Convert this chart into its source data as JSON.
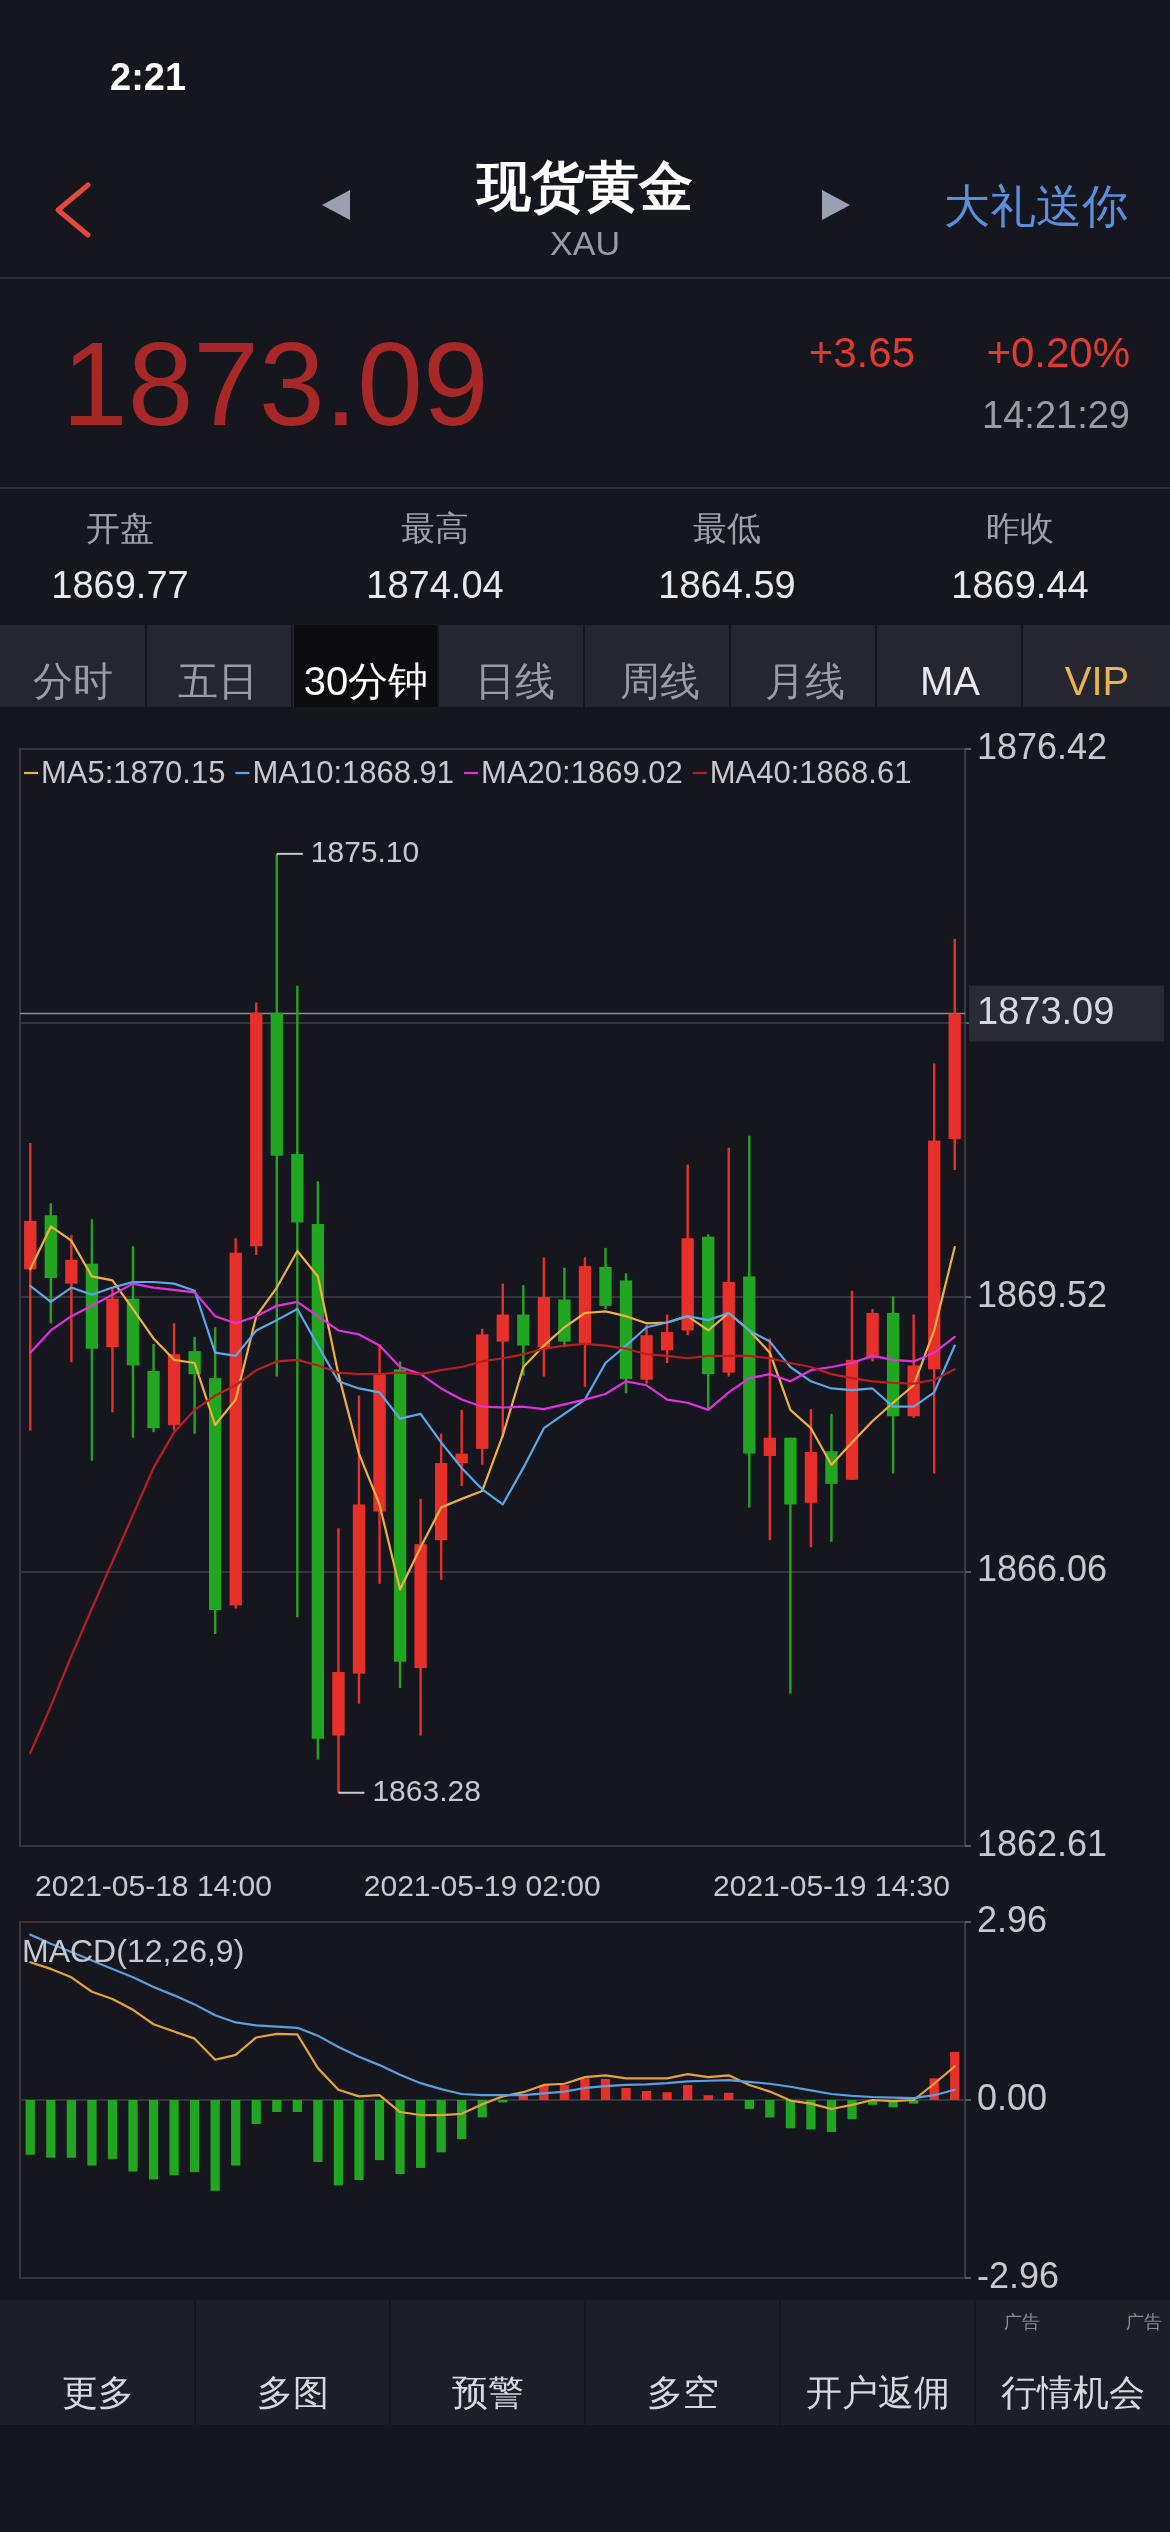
{
  "chart_data": [
    {
      "type": "other",
      "title": "现货黄金",
      "subtitle": "XAU",
      "annotations": [
        "2:21",
        "大礼送你",
        "1873.09",
        "+3.65",
        "+0.20%",
        "14:21:29",
        "开盘",
        "1869.77",
        "最高",
        "1874.04",
        "最低",
        "1864.59",
        "昨收",
        "1869.44",
        "分时",
        "五日",
        "30分钟",
        "日线",
        "周线",
        "月线",
        "MA",
        "VIP",
        "更多",
        "多图",
        "预警",
        "多空",
        "开户返佣",
        "行情机会",
        "广告",
        "广告"
      ]
    },
    {
      "type": "candlestick",
      "categories": [
        null,
        null,
        null,
        null,
        null,
        null,
        "2021-05-18 14:00",
        null,
        null,
        null,
        null,
        null,
        null,
        null,
        null,
        null,
        null,
        null,
        null,
        null,
        null,
        null,
        "2021-05-19 02:00",
        null,
        null,
        null,
        null,
        null,
        null,
        null,
        null,
        null,
        null,
        null,
        null,
        null,
        null,
        null,
        null,
        "2021-05-19 14:30",
        null,
        null,
        null,
        null,
        null,
        null
      ],
      "ohlc": [
        [
          1869.87,
          1871.46,
          1867.84,
          1870.48
        ],
        [
          1870.55,
          1870.7,
          1869.19,
          1869.76
        ],
        [
          1869.69,
          1870.3,
          1868.7,
          1869.99
        ],
        [
          1869.94,
          1870.5,
          1867.46,
          1868.87
        ],
        [
          1868.89,
          1869.64,
          1868.07,
          1869.5
        ],
        [
          1869.5,
          1870.16,
          1867.75,
          1868.66
        ],
        [
          1868.59,
          1868.93,
          1867.82,
          1867.87
        ],
        [
          1867.91,
          1869.19,
          1867.84,
          1868.8
        ],
        [
          1868.84,
          1869.02,
          1867.8,
          1868.55
        ],
        [
          1868.5,
          1869.14,
          1865.28,
          1865.58
        ],
        [
          1865.64,
          1870.26,
          1865.6,
          1870.08
        ],
        [
          1870.16,
          1873.23,
          1870.05,
          1873.1
        ],
        [
          1873.1,
          1875.1,
          1868.52,
          1871.3
        ],
        [
          1871.32,
          1873.44,
          1865.49,
          1870.46
        ],
        [
          1870.44,
          1870.98,
          1863.7,
          1863.96
        ],
        [
          1864.0,
          1866.61,
          1863.28,
          1864.8
        ],
        [
          1864.78,
          1868.28,
          1864.4,
          1866.91
        ],
        [
          1866.82,
          1868.93,
          1865.91,
          1868.55
        ],
        [
          1868.61,
          1868.71,
          1864.6,
          1864.93
        ],
        [
          1864.85,
          1866.98,
          1864.0,
          1866.41
        ],
        [
          1866.46,
          1867.8,
          1865.96,
          1867.43
        ],
        [
          1867.43,
          1868.1,
          1867.14,
          1867.55
        ],
        [
          1867.61,
          1869.12,
          1867.41,
          1869.05
        ],
        [
          1868.96,
          1869.69,
          1867.75,
          1869.3
        ],
        [
          1869.3,
          1869.67,
          1868.53,
          1868.91
        ],
        [
          1868.89,
          1870.02,
          1868.52,
          1869.52
        ],
        [
          1869.49,
          1869.89,
          1868.89,
          1868.96
        ],
        [
          1868.93,
          1870.02,
          1868.39,
          1869.91
        ],
        [
          1869.9,
          1870.14,
          1869.37,
          1869.41
        ],
        [
          1869.73,
          1869.82,
          1868.31,
          1868.49
        ],
        [
          1868.48,
          1869.17,
          1868.43,
          1869.04
        ],
        [
          1868.85,
          1869.3,
          1868.69,
          1869.08
        ],
        [
          1869.1,
          1871.19,
          1869.04,
          1870.26
        ],
        [
          1870.28,
          1870.31,
          1868.1,
          1868.55
        ],
        [
          1868.57,
          1871.4,
          1868.52,
          1869.71
        ],
        [
          1869.78,
          1871.55,
          1866.87,
          1867.55
        ],
        [
          1867.52,
          1869.0,
          1866.46,
          1867.75
        ],
        [
          1867.75,
          1867.75,
          1864.53,
          1866.91
        ],
        [
          1866.93,
          1868.11,
          1866.37,
          1867.57
        ],
        [
          1867.58,
          1868.05,
          1866.44,
          1867.17
        ],
        [
          1867.22,
          1869.6,
          1867.22,
          1868.73
        ],
        [
          1868.75,
          1869.37,
          1868.71,
          1869.32
        ],
        [
          1869.32,
          1869.53,
          1867.3,
          1868.02
        ],
        [
          1868.02,
          1869.3,
          1868.0,
          1868.66
        ],
        [
          1868.61,
          1872.46,
          1867.3,
          1871.49
        ],
        [
          1871.51,
          1874.03,
          1871.12,
          1873.09
        ]
      ],
      "series": [
        {
          "name": "MA5:1870.15",
          "type": "line",
          "color": "#f0b040",
          "values": [
            1869.87,
            1870.41,
            1870.23,
            1869.78,
            1869.73,
            1869.37,
            1869.0,
            1868.73,
            1868.69,
            1867.91,
            1868.23,
            1869.28,
            1869.64,
            1870.1,
            1869.78,
            1868.55,
            1867.55,
            1866.91,
            1865.84,
            1866.37,
            1866.87,
            1866.98,
            1867.08,
            1867.78,
            1868.64,
            1868.91,
            1869.14,
            1869.32,
            1869.34,
            1869.28,
            1869.19,
            1869.2,
            1869.28,
            1869.1,
            1869.32,
            1869.1,
            1868.82,
            1868.1,
            1867.87,
            1867.41,
            1867.69,
            1867.96,
            1868.19,
            1868.41,
            1869.1,
            1870.15
          ]
        },
        {
          "name": "MA10:1868.91",
          "type": "line",
          "color": "#5aa8e8",
          "values": [
            1869.66,
            1869.46,
            1869.64,
            1869.55,
            1869.64,
            1869.71,
            1869.71,
            1869.69,
            1869.6,
            1868.82,
            1868.78,
            1869.1,
            1869.23,
            1869.37,
            1868.91,
            1868.46,
            1868.37,
            1868.32,
            1867.99,
            1868.05,
            1867.69,
            1867.37,
            1867.1,
            1866.91,
            1867.37,
            1867.87,
            1868.05,
            1868.23,
            1868.69,
            1868.91,
            1869.14,
            1869.2,
            1869.28,
            1869.23,
            1869.32,
            1869.1,
            1868.96,
            1868.64,
            1868.46,
            1868.37,
            1868.35,
            1868.37,
            1868.14,
            1868.14,
            1868.32,
            1868.91
          ]
        },
        {
          "name": "MA20:1869.02",
          "type": "line",
          "color": "#e030e0",
          "values": [
            1868.82,
            1869.1,
            1869.28,
            1869.41,
            1869.55,
            1869.69,
            1869.64,
            1869.61,
            1869.58,
            1869.28,
            1869.19,
            1869.28,
            1869.41,
            1869.46,
            1869.28,
            1869.1,
            1869.05,
            1868.91,
            1868.64,
            1868.55,
            1868.37,
            1868.23,
            1868.14,
            1868.13,
            1868.14,
            1868.11,
            1868.17,
            1868.23,
            1868.3,
            1868.46,
            1868.41,
            1868.23,
            1868.19,
            1868.1,
            1868.32,
            1868.5,
            1868.55,
            1868.46,
            1868.6,
            1868.64,
            1868.69,
            1868.78,
            1868.73,
            1868.71,
            1868.82,
            1869.02
          ]
        },
        {
          "name": "MA40:1868.61",
          "type": "line",
          "color": "#b82020",
          "values": [
            1863.78,
            1864.37,
            1865.0,
            1865.6,
            1866.19,
            1866.78,
            1867.37,
            1867.82,
            1868.1,
            1868.28,
            1868.41,
            1868.6,
            1868.71,
            1868.73,
            1868.66,
            1868.57,
            1868.55,
            1868.55,
            1868.57,
            1868.55,
            1868.6,
            1868.64,
            1868.71,
            1868.75,
            1868.8,
            1868.87,
            1868.91,
            1868.93,
            1868.91,
            1868.87,
            1868.8,
            1868.78,
            1868.75,
            1868.78,
            1868.78,
            1868.78,
            1868.75,
            1868.69,
            1868.64,
            1868.55,
            1868.5,
            1868.46,
            1868.44,
            1868.43,
            1868.48,
            1868.61
          ]
        }
      ],
      "ylim": [
        1862.61,
        1876.42
      ],
      "yticks": [
        1862.61,
        1866.06,
        1869.52,
        {
          "value": 1872.97,
          "label": null
        },
        1876.42
      ],
      "grid": "y",
      "ref_lines": [
        {
          "axis": "y",
          "value": 1873.09,
          "label": "1873.09"
        }
      ],
      "annotations": [
        "1875.10",
        "1863.28"
      ],
      "legend": "top left"
    },
    {
      "type": "bar",
      "title": "MACD(12,26,9)",
      "categories": [
        null,
        null,
        null,
        null,
        null,
        null,
        null,
        null,
        null,
        null,
        null,
        null,
        null,
        null,
        null,
        null,
        null,
        null,
        null,
        null,
        null,
        null,
        null,
        null,
        null,
        null,
        null,
        null,
        null,
        null,
        null,
        null,
        null,
        null,
        null,
        null,
        null,
        null,
        null,
        null,
        null,
        null,
        null,
        null,
        null,
        null
      ],
      "series": [
        {
          "type": "bar",
          "values": [
            -0.91,
            -0.96,
            -0.96,
            -1.09,
            -0.98,
            -1.19,
            -1.32,
            -1.25,
            -1.2,
            -1.51,
            -1.09,
            -0.4,
            -0.2,
            -0.2,
            -1.03,
            -1.42,
            -1.33,
            -1.0,
            -1.23,
            -1.13,
            -0.87,
            -0.65,
            -0.29,
            -0.04,
            0.08,
            0.24,
            0.25,
            0.36,
            0.35,
            0.2,
            0.15,
            0.13,
            0.25,
            0.08,
            0.12,
            -0.15,
            -0.29,
            -0.47,
            -0.49,
            -0.53,
            -0.32,
            -0.08,
            -0.12,
            -0.06,
            0.36,
            0.8
          ],
          "colors": [
            "#21a621",
            "#21a621",
            "#21a621",
            "#21a621",
            "#21a621",
            "#21a621",
            "#21a621",
            "#21a621",
            "#21a621",
            "#21a621",
            "#21a621",
            "#21a621",
            "#21a621",
            "#21a621",
            "#21a621",
            "#21a621",
            "#21a621",
            "#21a621",
            "#21a621",
            "#21a621",
            "#21a621",
            "#21a621",
            "#21a621",
            "#21a621",
            "#e8302a",
            "#e8302a",
            "#e8302a",
            "#e8302a",
            "#e8302a",
            "#e8302a",
            "#e8302a",
            "#e8302a",
            "#e8302a",
            "#e8302a",
            "#e8302a",
            "#21a621",
            "#21a621",
            "#21a621",
            "#21a621",
            "#21a621",
            "#21a621",
            "#21a621",
            "#21a621",
            "#21a621",
            "#e8302a",
            "#e8302a"
          ]
        },
        {
          "type": "line",
          "color": "#e8a23c",
          "values": [
            2.29,
            2.18,
            2.04,
            1.8,
            1.68,
            1.5,
            1.26,
            1.14,
            1.02,
            0.67,
            0.75,
            1.04,
            1.1,
            1.09,
            0.53,
            0.17,
            0.06,
            0.08,
            -0.2,
            -0.25,
            -0.25,
            -0.23,
            -0.07,
            0.06,
            0.13,
            0.25,
            0.27,
            0.38,
            0.41,
            0.36,
            0.36,
            0.36,
            0.43,
            0.38,
            0.41,
            0.25,
            0.14,
            -0.01,
            -0.06,
            -0.15,
            -0.08,
            0.0,
            -0.02,
            0.0,
            0.27,
            0.56
          ]
        },
        {
          "type": "line",
          "color": "#5aa0e0",
          "values": [
            2.75,
            2.6,
            2.46,
            2.32,
            2.18,
            2.04,
            1.88,
            1.74,
            1.59,
            1.41,
            1.29,
            1.24,
            1.22,
            1.2,
            1.07,
            0.88,
            0.72,
            0.58,
            0.42,
            0.28,
            0.18,
            0.1,
            0.08,
            0.08,
            0.08,
            0.11,
            0.14,
            0.2,
            0.23,
            0.25,
            0.26,
            0.28,
            0.31,
            0.32,
            0.33,
            0.3,
            0.27,
            0.22,
            0.16,
            0.1,
            0.07,
            0.05,
            0.04,
            0.03,
            0.08,
            0.17
          ]
        }
      ],
      "ylim": [
        -2.96,
        2.96
      ],
      "yticks": [
        -2.96,
        {
          "value": 0,
          "label": "0.00"
        },
        2.96
      ],
      "grid": "y",
      "tick_labels": "y"
    }
  ]
}
